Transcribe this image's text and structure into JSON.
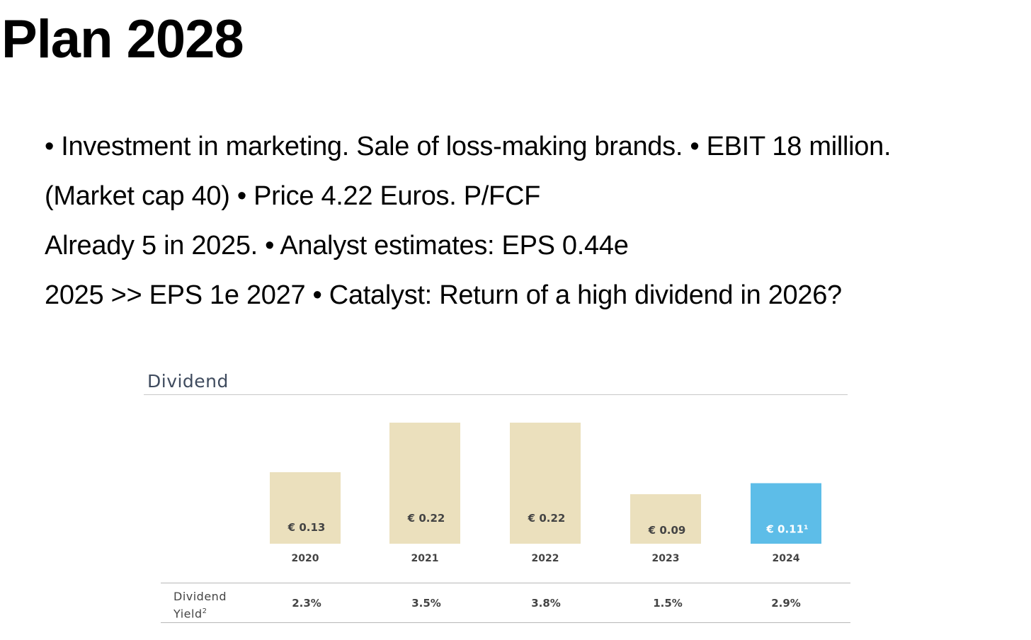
{
  "slide": {
    "title": "Plan 2028",
    "bullets": [
      "• Investment in marketing. Sale of loss-making brands. • EBIT 18 million.",
      "(Market cap 40) • Price 4.22 Euros. P/FCF",
      "Already 5 in 2025. • Analyst estimates: EPS 0.44e",
      "2025 >> EPS 1e 2027 • Catalyst: Return of a high dividend in 2026?"
    ]
  },
  "chart_data": {
    "type": "bar",
    "title": "Dividend",
    "categories": [
      "2020",
      "2021",
      "2022",
      "2023",
      "2024"
    ],
    "values": [
      0.13,
      0.22,
      0.22,
      0.09,
      0.11
    ],
    "value_labels": [
      "€ 0.13",
      "€ 0.22",
      "€ 0.22",
      "€ 0.09",
      "€ 0.11¹"
    ],
    "bar_colors": [
      "#ebe0bd",
      "#ebe0bd",
      "#ebe0bd",
      "#ebe0bd",
      "#5dbde8"
    ],
    "label_colors": [
      "#444444",
      "#444444",
      "#444444",
      "#444444",
      "#ffffff"
    ],
    "ylim": [
      0,
      0.22
    ],
    "grid": false,
    "legend": "none",
    "yield_table": {
      "header_line1": "Dividend",
      "header_line2": "Yield",
      "header_sup": "2",
      "values": [
        "2.3%",
        "3.5%",
        "3.8%",
        "1.5%",
        "2.9%"
      ]
    }
  }
}
